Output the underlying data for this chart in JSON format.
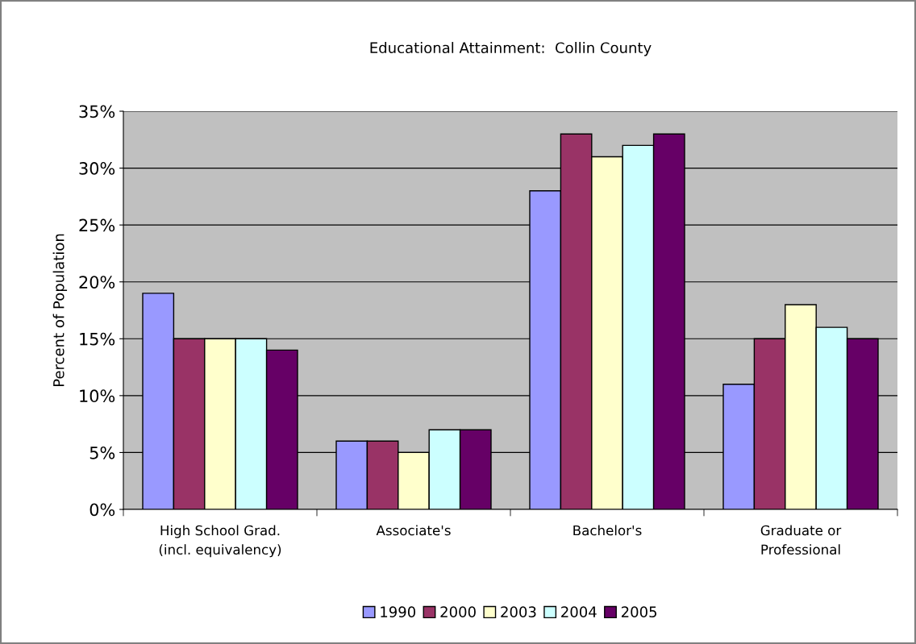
{
  "chart_data": {
    "type": "bar",
    "title": "Educational Attainment:  Collin County",
    "ylabel": "Percent of Population",
    "categories": [
      "High School Grad.\n(incl. equivalency)",
      "Associate's",
      "Bachelor's",
      "Graduate or\nProfessional"
    ],
    "series": [
      {
        "name": "1990",
        "color": "#9999ff",
        "values": [
          19,
          6,
          28,
          11
        ]
      },
      {
        "name": "2000",
        "color": "#993366",
        "values": [
          15,
          6,
          33,
          15
        ]
      },
      {
        "name": "2003",
        "color": "#ffffcc",
        "values": [
          15,
          5,
          31,
          18
        ]
      },
      {
        "name": "2004",
        "color": "#ccffff",
        "values": [
          15,
          7,
          32,
          16
        ]
      },
      {
        "name": "2005",
        "color": "#660066",
        "values": [
          14,
          7,
          33,
          15
        ]
      }
    ],
    "ylim": [
      0,
      35
    ],
    "yticks": [
      {
        "value": 0,
        "label": "0%"
      },
      {
        "value": 5,
        "label": "5%"
      },
      {
        "value": 10,
        "label": "10%"
      },
      {
        "value": 15,
        "label": "15%"
      },
      {
        "value": 20,
        "label": "20%"
      },
      {
        "value": 25,
        "label": "25%"
      },
      {
        "value": 30,
        "label": "30%"
      },
      {
        "value": 35,
        "label": "35%"
      }
    ],
    "grid": "y",
    "legend": "bottom"
  }
}
